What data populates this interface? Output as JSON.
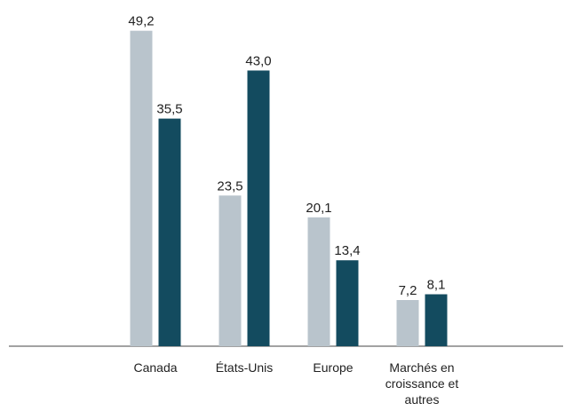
{
  "chart_data": {
    "type": "bar",
    "categories": [
      "Canada",
      "États-Unis",
      "Europe",
      "Marchés en croissance et autres"
    ],
    "series": [
      {
        "color": "#b9c4cc",
        "values": [
          49.2,
          23.5,
          20.1,
          7.2
        ],
        "value_labels": [
          "49,2",
          "23,5",
          "20,1",
          "7,2"
        ]
      },
      {
        "color": "#134b5f",
        "values": [
          35.5,
          43.0,
          13.4,
          8.1
        ],
        "value_labels": [
          "35,5",
          "43,0",
          "13,4",
          "8,1"
        ]
      }
    ],
    "ylim": [
      0,
      54
    ]
  }
}
